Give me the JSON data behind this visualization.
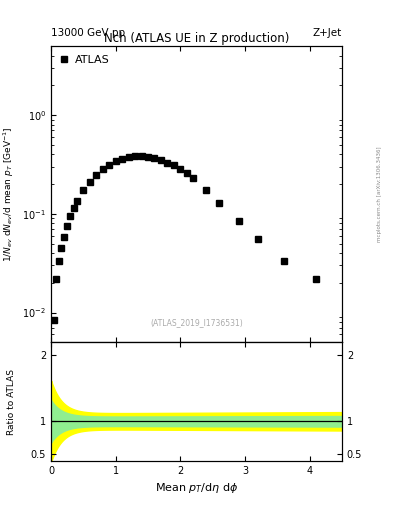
{
  "title_main": "Nch (ATLAS UE in Z production)",
  "header_left": "13000 GeV pp",
  "header_right": "Z+Jet",
  "legend_label": "ATLAS",
  "xlabel": "Mean $p_{T}$/d$\\eta$ d$\\phi$",
  "ylabel_main": "$1/N_{ev}$ d$N_{ev}$/d mean $p_{T}$ [GeV$^{-1}$]",
  "ylabel_ratio": "Ratio to ATLAS",
  "watermark": "(ATLAS_2019_I1736531)",
  "side_text": "mcplots.cern.ch [arXiv:1306.3436]",
  "data_x": [
    0.04,
    0.08,
    0.12,
    0.16,
    0.2,
    0.25,
    0.3,
    0.35,
    0.4,
    0.5,
    0.6,
    0.7,
    0.8,
    0.9,
    1.0,
    1.1,
    1.2,
    1.3,
    1.4,
    1.5,
    1.6,
    1.7,
    1.8,
    1.9,
    2.0,
    2.1,
    2.2,
    2.4,
    2.6,
    2.9,
    3.2,
    3.6,
    4.1
  ],
  "data_y": [
    0.0085,
    0.022,
    0.033,
    0.045,
    0.058,
    0.075,
    0.095,
    0.115,
    0.135,
    0.175,
    0.21,
    0.25,
    0.285,
    0.315,
    0.34,
    0.36,
    0.375,
    0.385,
    0.385,
    0.378,
    0.365,
    0.35,
    0.33,
    0.31,
    0.285,
    0.26,
    0.23,
    0.175,
    0.13,
    0.085,
    0.055,
    0.033,
    0.022
  ],
  "xlim": [
    0,
    4.5
  ],
  "ylim_main": [
    0.005,
    5.0
  ],
  "ylim_ratio": [
    0.4,
    2.2
  ],
  "marker_color": "black",
  "marker_size": 4,
  "marker_style": "s",
  "band_yellow": "#ffff00",
  "band_green": "#90ee90",
  "ratio_line": 1.0,
  "background_color": "white"
}
